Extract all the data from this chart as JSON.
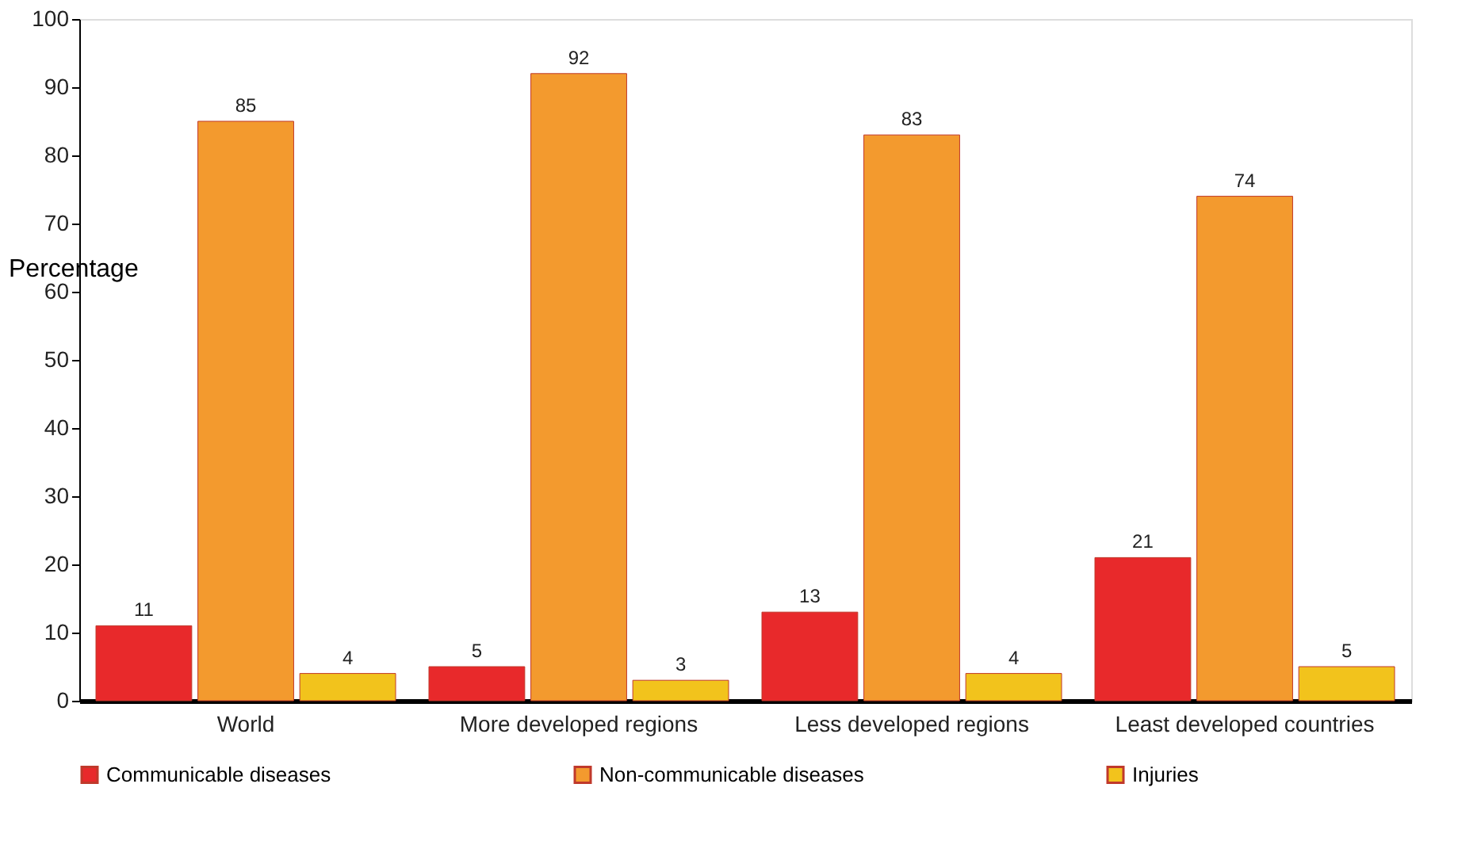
{
  "chart_data": {
    "type": "bar",
    "ylabel": "Percentage",
    "categories": [
      "World",
      "More developed regions",
      "Less developed regions",
      "Least developed countries"
    ],
    "series": [
      {
        "name": "Communicable diseases",
        "color": "#e8292b",
        "values": [
          11,
          5,
          13,
          21
        ]
      },
      {
        "name": "Non-communicable diseases",
        "color": "#f39a2e",
        "values": [
          85,
          92,
          83,
          74
        ]
      },
      {
        "name": "Injuries",
        "color": "#f2c31c",
        "values": [
          4,
          3,
          4,
          5
        ]
      }
    ],
    "ylim": [
      0,
      100
    ],
    "yticks": [
      0,
      10,
      20,
      30,
      40,
      50,
      60,
      70,
      80,
      90,
      100
    ],
    "grid": false,
    "legend": "bottom",
    "data_labels": true
  }
}
